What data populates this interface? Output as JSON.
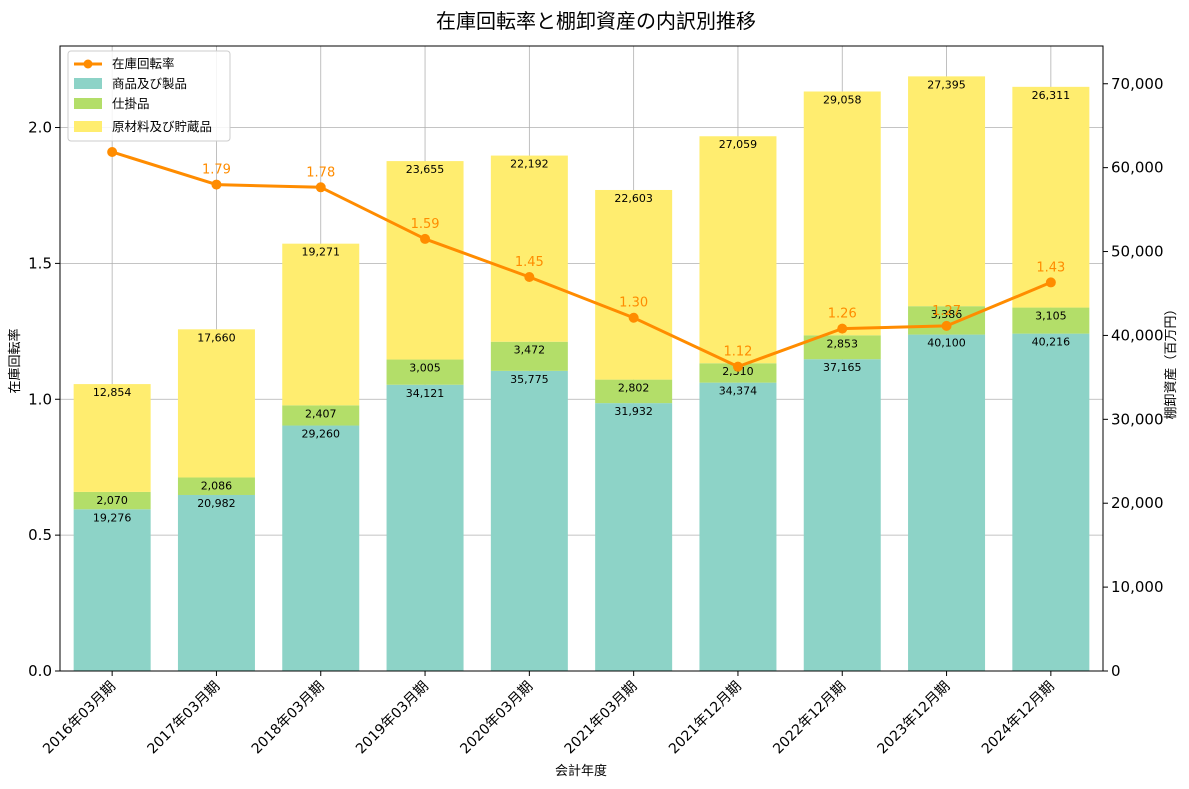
{
  "chart_data": {
    "type": "bar",
    "title": "在庫回転率と棚卸資産の内訳別推移",
    "xlabel": "会計年度",
    "ylabel_left": "在庫回転率",
    "ylabel_right": "棚卸資産（百万円）",
    "categories": [
      "2016年03月期",
      "2017年03月期",
      "2018年03月期",
      "2019年03月期",
      "2020年03月期",
      "2021年03月期",
      "2021年12月期",
      "2022年12月期",
      "2023年12月期",
      "2024年12月期"
    ],
    "stacked_series": [
      {
        "name": "商品及び製品",
        "color": "#8dd3c7",
        "values": [
          19276,
          20982,
          29260,
          34121,
          35775,
          31932,
          34374,
          37165,
          40100,
          40216
        ],
        "value_labels": [
          "19,276",
          "20,982",
          "29,260",
          "34,121",
          "35,775",
          "31,932",
          "34,374",
          "37,165",
          "40,100",
          "40,216"
        ]
      },
      {
        "name": "仕掛品",
        "color": "#b3de69",
        "values": [
          2070,
          2086,
          2407,
          3005,
          3472,
          2802,
          2310,
          2853,
          3386,
          3105
        ],
        "value_labels": [
          "2,070",
          "2,086",
          "2,407",
          "3,005",
          "3,472",
          "2,802",
          "2,310",
          "2,853",
          "3,386",
          "3,105"
        ]
      },
      {
        "name": "原材料及び貯蔵品",
        "color": "#ffed6f",
        "values": [
          12854,
          17660,
          19271,
          23655,
          22192,
          22603,
          27059,
          29058,
          27395,
          26311
        ],
        "value_labels": [
          "12,854",
          "17,660",
          "19,271",
          "23,655",
          "22,192",
          "22,603",
          "27,059",
          "29,058",
          "27,395",
          "26,311"
        ]
      }
    ],
    "line_series": {
      "name": "在庫回転率",
      "color": "#ff8c00",
      "values": [
        1.91,
        1.79,
        1.78,
        1.59,
        1.45,
        1.3,
        1.12,
        1.26,
        1.27,
        1.43
      ],
      "value_labels": [
        "",
        "1.79",
        "1.78",
        "1.59",
        "1.45",
        "1.30",
        "1.12",
        "1.26",
        "1.27",
        "1.43"
      ]
    },
    "y_left": {
      "lim": [
        0,
        2.3
      ],
      "ticks": [
        0.0,
        0.5,
        1.0,
        1.5,
        2.0
      ],
      "tick_labels": [
        "0.0",
        "0.5",
        "1.0",
        "1.5",
        "2.0"
      ]
    },
    "y_right": {
      "lim": [
        0,
        74500
      ],
      "ticks": [
        0,
        10000,
        20000,
        30000,
        40000,
        50000,
        60000,
        70000
      ],
      "tick_labels": [
        "0",
        "10,000",
        "20,000",
        "30,000",
        "40,000",
        "50,000",
        "60,000",
        "70,000"
      ]
    },
    "grid": true,
    "legend_placement": "top-left"
  }
}
